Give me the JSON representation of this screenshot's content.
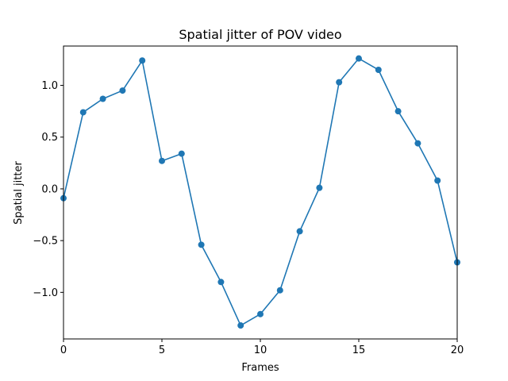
{
  "chart_data": {
    "type": "line",
    "title": "Spatial jitter of POV video",
    "xlabel": "Frames",
    "ylabel": "Spatial jitter",
    "xlim": [
      0,
      20
    ],
    "ylim": [
      -1.45,
      1.38
    ],
    "x_ticks": [
      0,
      5,
      10,
      15,
      20
    ],
    "x_tick_labels": [
      "0",
      "5",
      "10",
      "15",
      "20"
    ],
    "y_ticks": [
      -1.0,
      -0.5,
      0.0,
      0.5,
      1.0
    ],
    "y_tick_labels": [
      "−1.0",
      "−0.5",
      "0.0",
      "0.5",
      "1.0"
    ],
    "grid": false,
    "legend": "none",
    "series": [
      {
        "color": "#1f77b4",
        "marker": "circle",
        "x": [
          0,
          1,
          2,
          3,
          4,
          5,
          6,
          7,
          8,
          9,
          10,
          11,
          12,
          13,
          14,
          15,
          16,
          17,
          18,
          19,
          20
        ],
        "y": [
          -0.09,
          0.74,
          0.87,
          0.95,
          1.24,
          0.27,
          0.34,
          -0.54,
          -0.9,
          -1.32,
          -1.21,
          -0.98,
          -0.41,
          0.01,
          1.03,
          1.26,
          1.15,
          0.75,
          0.44,
          0.08,
          -0.71
        ]
      }
    ]
  }
}
